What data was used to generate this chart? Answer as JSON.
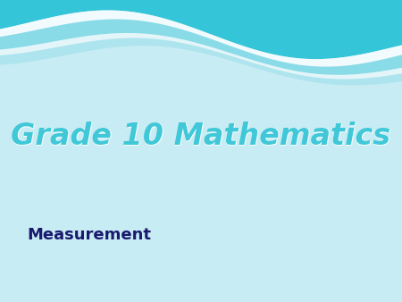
{
  "title": "Grade 10 Mathematics",
  "subtitle": "Measurement",
  "bg_color": "#c8ecf4",
  "title_color": "#40c8d8",
  "title_shadow_color": "#88dde8",
  "subtitle_color": "#1a1a6e",
  "wave_teal_dark": "#35c5d8",
  "wave_teal_mid": "#60d0e0",
  "wave_white": "#e8f8fc",
  "title_fontsize": 24,
  "subtitle_fontsize": 13
}
